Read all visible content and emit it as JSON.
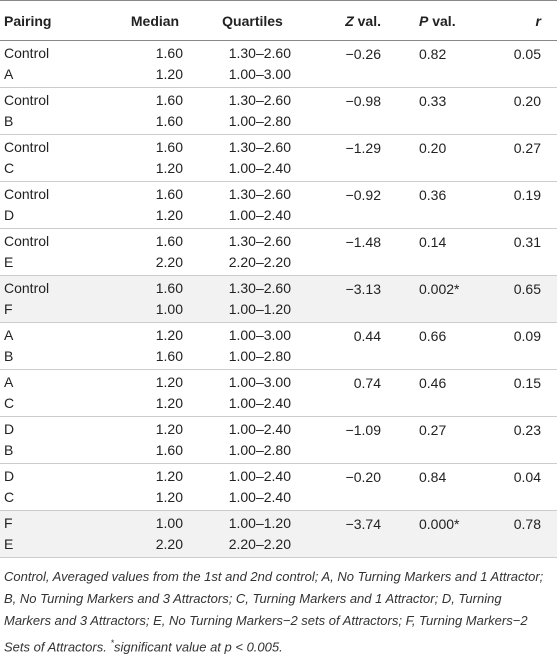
{
  "table": {
    "columns": [
      "Pairing",
      "Median",
      "Quartiles",
      {
        "italic": "Z",
        "text": " val."
      },
      {
        "italic": "P",
        "text": " val."
      },
      {
        "italic": "r"
      }
    ],
    "rows": [
      {
        "pairing": [
          "Control",
          "A"
        ],
        "median": [
          "1.60",
          "1.20"
        ],
        "quartiles": [
          "1.30–2.60",
          "1.00–3.00"
        ],
        "z": "−0.26",
        "p": "0.82",
        "r": "0.05"
      },
      {
        "pairing": [
          "Control",
          "B"
        ],
        "median": [
          "1.60",
          "1.60"
        ],
        "quartiles": [
          "1.30–2.60",
          "1.00–2.80"
        ],
        "z": "−0.98",
        "p": "0.33",
        "r": "0.20"
      },
      {
        "pairing": [
          "Control",
          "C"
        ],
        "median": [
          "1.60",
          "1.20"
        ],
        "quartiles": [
          "1.30–2.60",
          "1.00–2.40"
        ],
        "z": "−1.29",
        "p": "0.20",
        "r": "0.27"
      },
      {
        "pairing": [
          "Control",
          "D"
        ],
        "median": [
          "1.60",
          "1.20"
        ],
        "quartiles": [
          "1.30–2.60",
          "1.00–2.40"
        ],
        "z": "−0.92",
        "p": "0.36",
        "r": "0.19"
      },
      {
        "pairing": [
          "Control",
          "E"
        ],
        "median": [
          "1.60",
          "2.20"
        ],
        "quartiles": [
          "1.30–2.60",
          "2.20–2.20"
        ],
        "z": "−1.48",
        "p": "0.14",
        "r": "0.31"
      },
      {
        "pairing": [
          "Control",
          "F"
        ],
        "median": [
          "1.60",
          "1.00"
        ],
        "quartiles": [
          "1.30–2.60",
          "1.00–1.20"
        ],
        "z": "−3.13",
        "p": "0.002*",
        "r": "0.65",
        "highlight": true
      },
      {
        "pairing": [
          "A",
          "B"
        ],
        "median": [
          "1.20",
          "1.60"
        ],
        "quartiles": [
          "1.00–3.00",
          "1.00–2.80"
        ],
        "z": "0.44",
        "p": "0.66",
        "r": "0.09"
      },
      {
        "pairing": [
          "A",
          "C"
        ],
        "median": [
          "1.20",
          "1.20"
        ],
        "quartiles": [
          "1.00–3.00",
          "1.00–2.40"
        ],
        "z": "0.74",
        "p": "0.46",
        "r": "0.15"
      },
      {
        "pairing": [
          "D",
          "B"
        ],
        "median": [
          "1.20",
          "1.60"
        ],
        "quartiles": [
          "1.00–2.40",
          "1.00–2.80"
        ],
        "z": "−1.09",
        "p": "0.27",
        "r": "0.23"
      },
      {
        "pairing": [
          "D",
          "C"
        ],
        "median": [
          "1.20",
          "1.20"
        ],
        "quartiles": [
          "1.00–2.40",
          "1.00–2.40"
        ],
        "z": "−0.20",
        "p": "0.84",
        "r": "0.04"
      },
      {
        "pairing": [
          "F",
          "E"
        ],
        "median": [
          "1.00",
          "2.20"
        ],
        "quartiles": [
          "1.00–1.20",
          "2.20–2.20"
        ],
        "z": "−3.74",
        "p": "0.000*",
        "r": "0.78",
        "highlight": true
      }
    ]
  },
  "footnote": {
    "text": "Control, Averaged values from the 1st and 2nd control; A, No Turning Markers and 1 Attractor; B, No Turning Markers and 3 Attractors; C, Turning Markers and 1 Attractor; D, Turning Markers and 3 Attractors; E, No Turning Markers−2 sets of Attractors; F, Turning Markers−2 Sets of Attractors. ",
    "mark": "*",
    "note": "significant value at p < 0.005."
  }
}
